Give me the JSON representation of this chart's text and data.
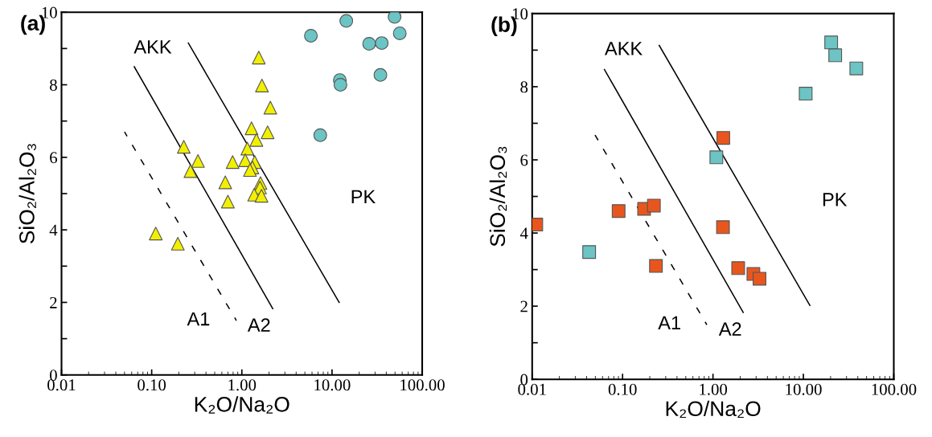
{
  "chart_data": [
    {
      "type": "scatter",
      "log": "x",
      "xlabel": "K₂O/Na₂O",
      "ylabel": "SiO₂/Al₂O₃",
      "xlim": [
        0.01,
        100
      ],
      "ylim": [
        0,
        10
      ],
      "xticks": [
        0.01,
        {
          "value": 0.1,
          "label": "0.10"
        },
        {
          "value": 1,
          "label": "1.00"
        },
        {
          "value": 10,
          "label": "10.00"
        },
        {
          "value": 100,
          "label": "100.00"
        }
      ],
      "yticks": [
        0,
        {
          "value": 1,
          "label": null
        },
        2,
        {
          "value": 3,
          "label": null
        },
        4,
        {
          "value": 5,
          "label": null
        },
        6,
        {
          "value": 7,
          "label": null
        },
        8,
        {
          "value": 9,
          "label": null
        },
        10
      ],
      "grid": false,
      "legend": false,
      "annotations": [
        "(a)",
        "AKK",
        "A1",
        "A2",
        "PK"
      ],
      "series": [
        {
          "type": "line",
          "color": "#000000",
          "line_style": "solid",
          "marker": "none",
          "x": [
            0.064,
            2.2
          ],
          "values": [
            8.5,
            1.83
          ]
        },
        {
          "type": "line",
          "color": "#000000",
          "line_style": "solid",
          "marker": "none",
          "x": [
            0.255,
            12
          ],
          "values": [
            9.15,
            2.0
          ]
        },
        {
          "type": "line",
          "color": "#000000",
          "line_style": "dashed",
          "marker": "none",
          "x": [
            0.05,
            0.87
          ],
          "values": [
            6.7,
            1.5
          ]
        },
        {
          "color": "#f2f000",
          "marker": "triangle",
          "x": [
            1.54,
            1.67,
            2.07,
            1.28,
            1.93,
            1.45,
            1.15,
            0.227,
            0.326,
            0.269,
            0.79,
            1.09,
            1.39,
            1.31,
            1.23,
            0.655,
            1.61,
            1.59,
            1.37,
            1.65,
            0.7,
            0.111,
            0.195
          ],
          "values": [
            8.75,
            7.98,
            7.37,
            6.8,
            6.69,
            6.48,
            6.24,
            6.29,
            5.9,
            5.62,
            5.87,
            5.92,
            5.87,
            5.72,
            5.65,
            5.31,
            5.29,
            5.17,
            4.97,
            4.94,
            4.78,
            3.9,
            3.62
          ]
        },
        {
          "color": "#6cc4c4",
          "marker": "circle",
          "x": [
            5.83,
            14.4,
            49.4,
            56.4,
            25.8,
            35.6,
            12.2,
            12.4,
            34.4,
            7.4
          ],
          "values": [
            9.35,
            9.76,
            9.87,
            9.42,
            9.13,
            9.15,
            8.13,
            8.0,
            8.27,
            6.61
          ]
        }
      ]
    },
    {
      "type": "scatter",
      "log": "x",
      "xlabel": "K₂O/Na₂O",
      "ylabel": "SiO₂/Al₂O₃",
      "xlim": [
        0.01,
        100
      ],
      "ylim": [
        0,
        10
      ],
      "xticks": [
        0.01,
        {
          "value": 0.1,
          "label": "0.10"
        },
        {
          "value": 1,
          "label": "1.00"
        },
        {
          "value": 10,
          "label": "10.00"
        },
        {
          "value": 100,
          "label": "100.00"
        }
      ],
      "yticks": [
        0,
        {
          "value": 1,
          "label": null
        },
        2,
        {
          "value": 3,
          "label": null
        },
        4,
        {
          "value": 5,
          "label": null
        },
        6,
        {
          "value": 7,
          "label": null
        },
        8,
        {
          "value": 9,
          "label": null
        },
        10
      ],
      "grid": false,
      "legend": false,
      "annotations": [
        "(b)",
        "AKK",
        "A1",
        "A2",
        "PK"
      ],
      "series": [
        {
          "type": "line",
          "color": "#000000",
          "line_style": "solid",
          "marker": "none",
          "x": [
            0.063,
            2.16
          ],
          "values": [
            8.47,
            1.83
          ]
        },
        {
          "type": "line",
          "color": "#000000",
          "line_style": "solid",
          "marker": "none",
          "x": [
            0.254,
            11.8
          ],
          "values": [
            9.13,
            2.02
          ]
        },
        {
          "type": "line",
          "color": "#000000",
          "line_style": "dashed",
          "marker": "none",
          "x": [
            0.0496,
            0.855
          ],
          "values": [
            6.68,
            1.49
          ]
        },
        {
          "color": "#e8561e",
          "marker": "square",
          "x": [
            0.0111,
            0.0904,
            0.173,
            0.222,
            0.234,
            1.3,
            1.29,
            1.9,
            2.8,
            3.27
          ],
          "values": [
            4.23,
            4.6,
            4.66,
            4.75,
            3.1,
            6.6,
            4.16,
            3.04,
            2.88,
            2.75
          ]
        },
        {
          "color": "#6cc4c4",
          "marker": "square",
          "x": [
            0.0427,
            1.09,
            10.6,
            20.3,
            22.5,
            38.5
          ],
          "values": [
            3.48,
            6.07,
            7.81,
            9.21,
            8.86,
            8.5
          ]
        }
      ]
    }
  ]
}
